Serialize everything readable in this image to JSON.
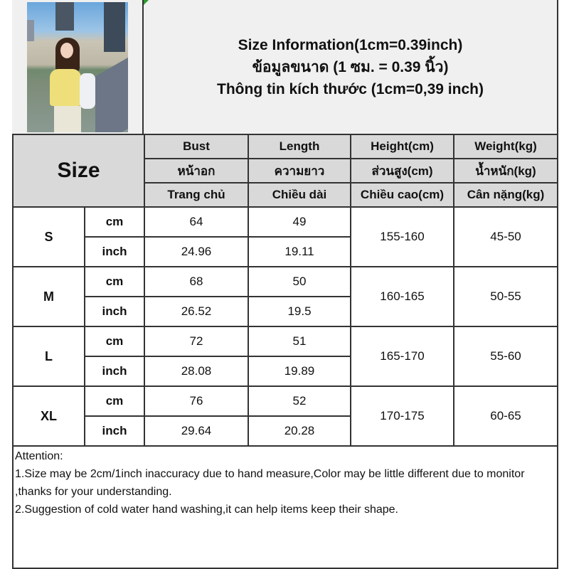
{
  "title": {
    "lines": [
      "Size Information(1cm=0.39inch)",
      "ข้อมูลขนาด (1 ซม. = 0.39 นิ้ว)",
      "Thông tin kích thước (1cm=0,39 inch)"
    ]
  },
  "table": {
    "size_label": "Size",
    "columns": [
      {
        "en": "Bust",
        "th": "หน้าอก",
        "vi": "Trang chủ"
      },
      {
        "en": "Length",
        "th": "ความยาว",
        "vi": "Chiều dài"
      },
      {
        "en": "Height(cm)",
        "th": "ส่วนสูง(cm)",
        "vi": "Chiều cao(cm)"
      },
      {
        "en": "Weight(kg)",
        "th": "น้ำหนัก(kg)",
        "vi": "Cân nặng(kg)"
      }
    ],
    "rows": [
      {
        "size": "S",
        "cm_unit": "cm",
        "inch_unit": "inch",
        "bust_cm": "64",
        "length_cm": "49",
        "bust_inch": "24.96",
        "length_inch": "19.11",
        "height": "155-160",
        "weight": "45-50"
      },
      {
        "size": "M",
        "cm_unit": "cm",
        "inch_unit": "inch",
        "bust_cm": "68",
        "length_cm": "50",
        "bust_inch": "26.52",
        "length_inch": "19.5",
        "height": "160-165",
        "weight": "50-55"
      },
      {
        "size": "L",
        "cm_unit": "cm",
        "inch_unit": "inch",
        "bust_cm": "72",
        "length_cm": "51",
        "bust_inch": "28.08",
        "length_inch": "19.89",
        "height": "165-170",
        "weight": "55-60"
      },
      {
        "size": "XL",
        "cm_unit": "cm",
        "inch_unit": "inch",
        "bust_cm": "76",
        "length_cm": "52",
        "bust_inch": "29.64",
        "length_inch": "20.28",
        "height": "170-175",
        "weight": "60-65"
      }
    ]
  },
  "notes": {
    "heading": "Attention:",
    "items": [
      "1.Size may be 2cm/1inch inaccuracy due to hand measure,Color may be little different due to monitor ,thanks for your understanding.",
      "2.Suggestion of cold water hand washing,it can help items keep their shape."
    ]
  },
  "colors": {
    "header_bg": "#d9d9d9",
    "title_bg": "#f0f0f0",
    "border": "#333333"
  }
}
